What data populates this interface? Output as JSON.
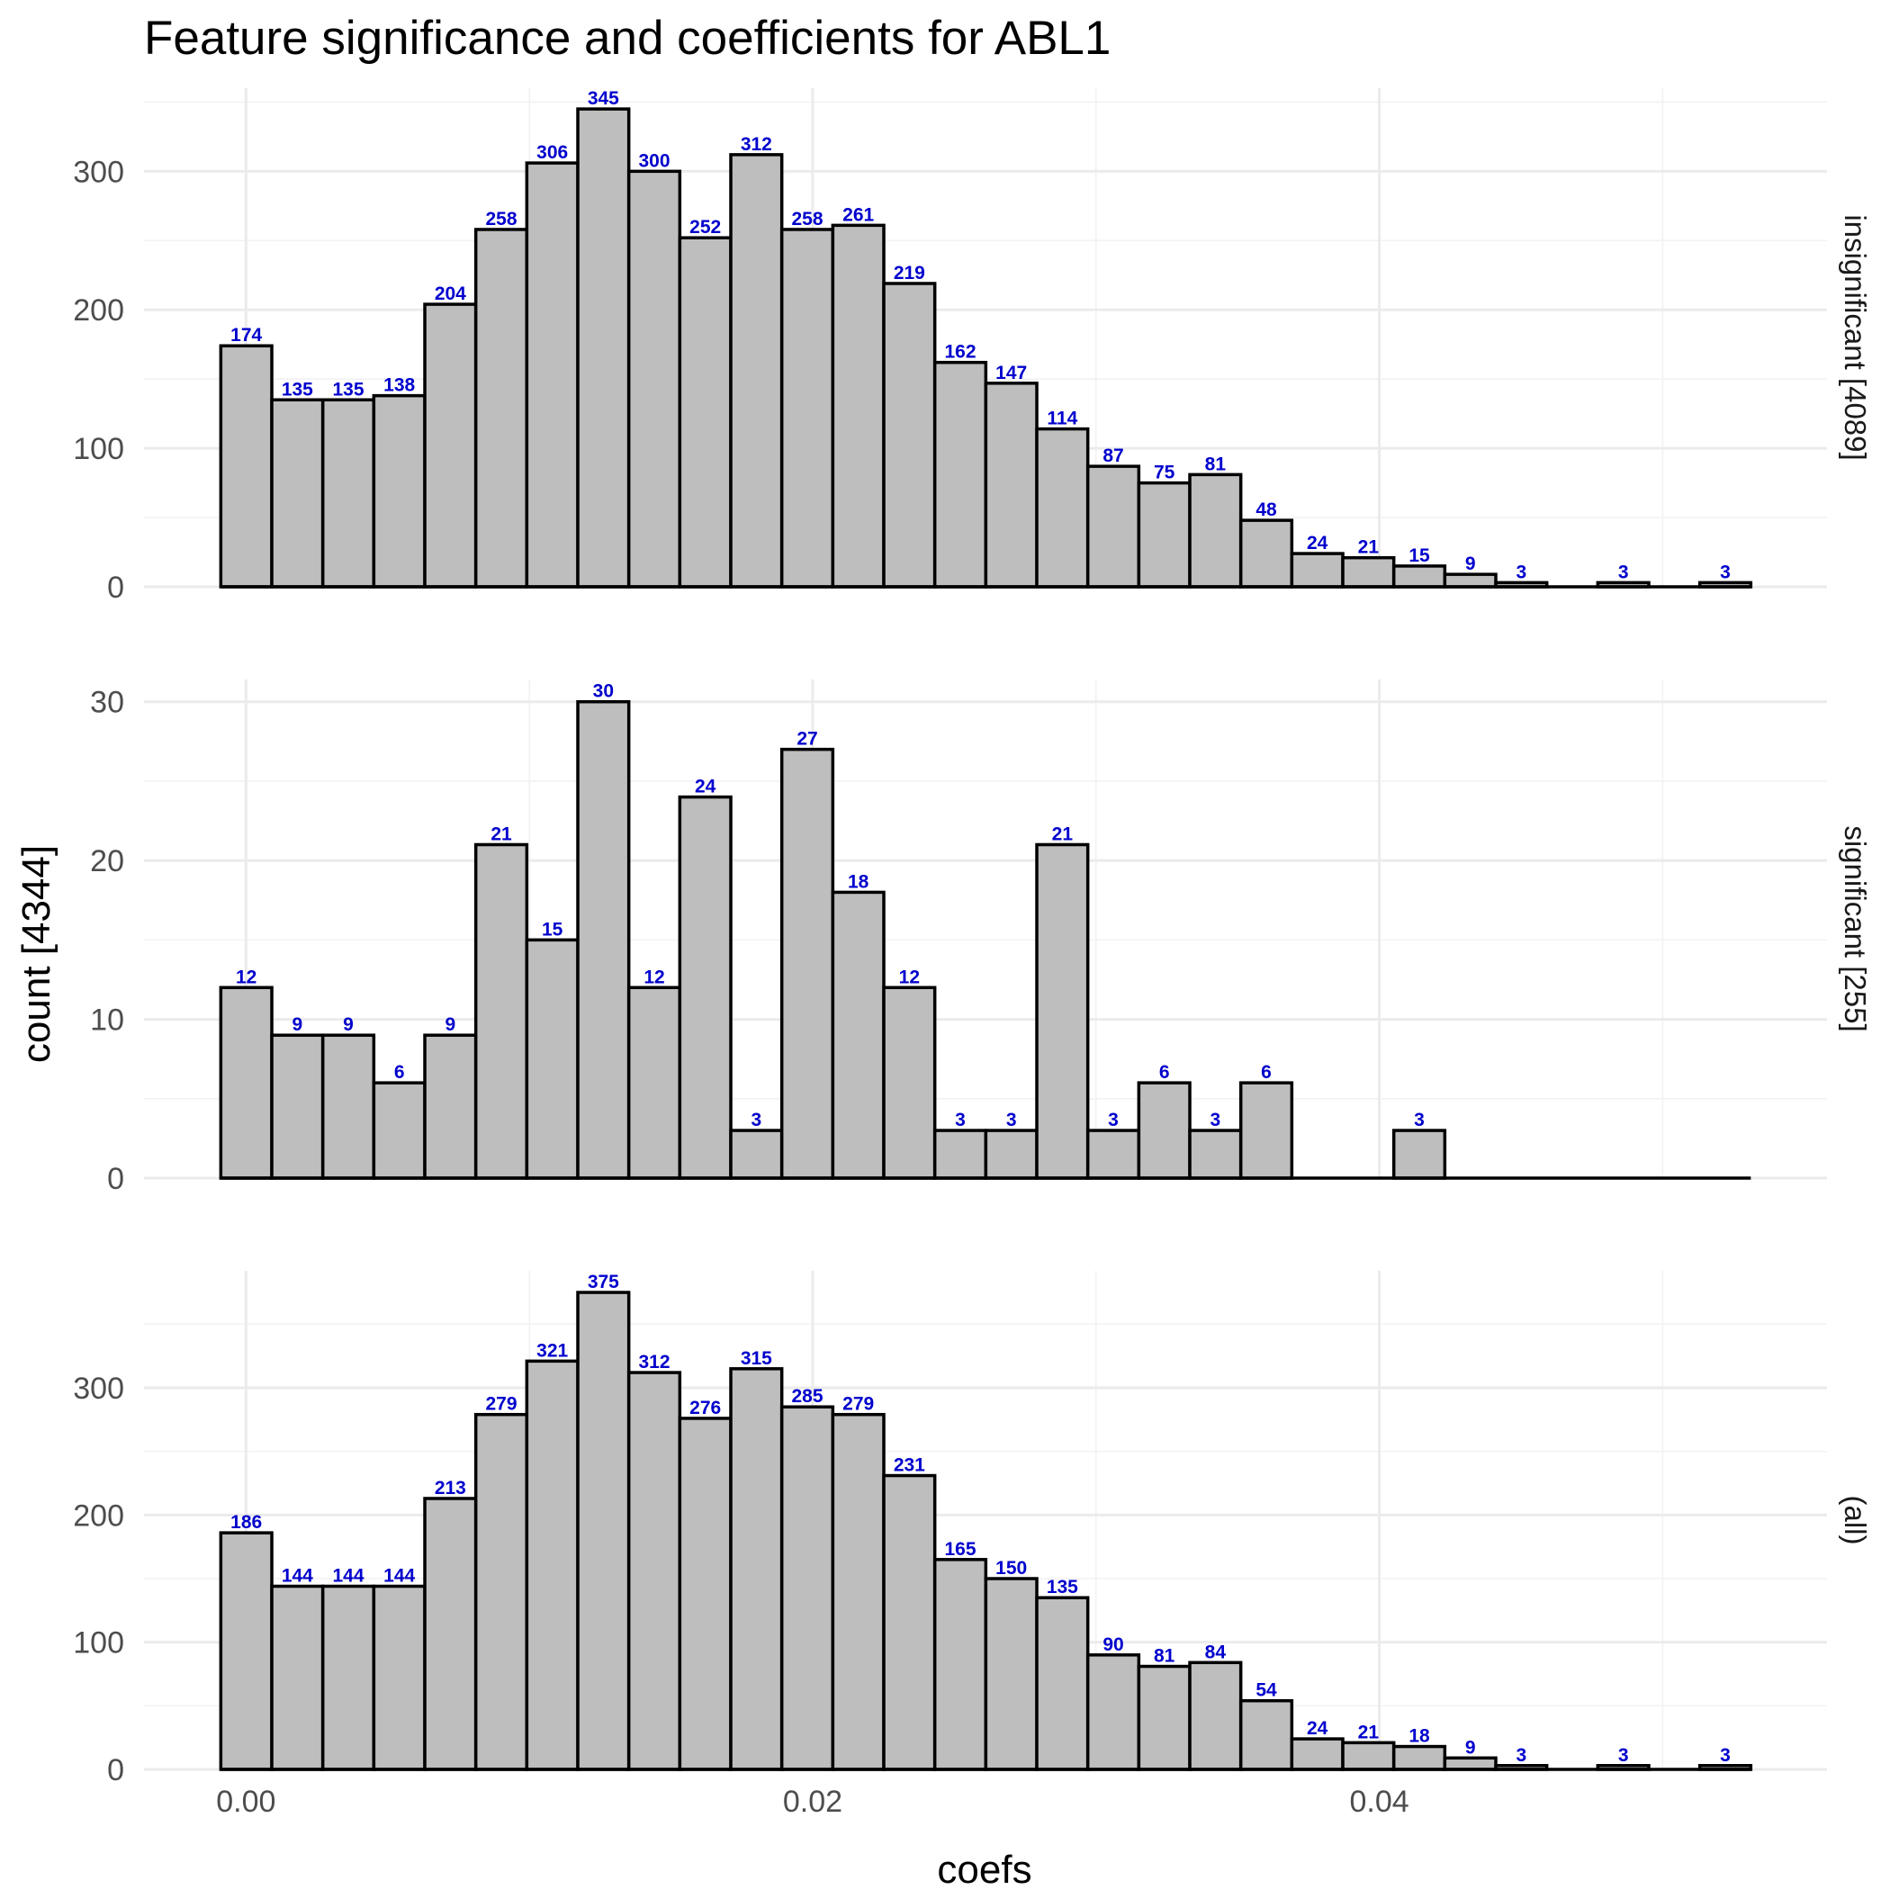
{
  "chart_data": {
    "type": "bar",
    "title": "Feature significance and coefficients for ABL1",
    "xlabel": "coefs",
    "ylabel": "count [4344]",
    "bin_start": -0.000889,
    "bin_width": 0.0018,
    "xlim": [
      -0.0036,
      0.0558
    ],
    "x_ticks": [
      0.0,
      0.02,
      0.04
    ],
    "x_tick_labels": [
      "0.00",
      "0.02",
      "0.04"
    ],
    "grid": true,
    "panels": [
      {
        "strip": "insignificant [4089]",
        "ylim": [
          0,
          360
        ],
        "y_ticks": [
          0,
          100,
          200,
          300
        ],
        "y_tick_labels": [
          "0",
          "100",
          "200",
          "300"
        ],
        "values": [
          174,
          135,
          135,
          138,
          204,
          258,
          306,
          345,
          300,
          252,
          312,
          258,
          261,
          219,
          162,
          147,
          114,
          87,
          75,
          81,
          48,
          24,
          21,
          15,
          9,
          3,
          0,
          3,
          0,
          3
        ],
        "labels": [
          "174",
          "135",
          "135",
          "138",
          "204",
          "258",
          "306",
          "345",
          "300",
          "252",
          "312",
          "258",
          "261",
          "219",
          "162",
          "147",
          "114",
          "87",
          "75",
          "81",
          "48",
          "24",
          "21",
          "15",
          "9",
          "3",
          "",
          "3",
          "",
          "3"
        ]
      },
      {
        "strip": "significant [255]",
        "ylim": [
          0,
          31.4
        ],
        "y_ticks": [
          0,
          10,
          20,
          30
        ],
        "y_tick_labels": [
          "0",
          "10",
          "20",
          "30"
        ],
        "values": [
          12,
          9,
          9,
          6,
          9,
          21,
          15,
          30,
          12,
          24,
          3,
          27,
          18,
          12,
          3,
          3,
          21,
          3,
          6,
          3,
          6,
          0,
          0,
          3,
          0,
          0,
          0,
          0,
          0,
          0
        ],
        "labels": [
          "12",
          "9",
          "9",
          "6",
          "9",
          "21",
          "15",
          "30",
          "12",
          "24",
          "3",
          "27",
          "18",
          "12",
          "3",
          "3",
          "21",
          "3",
          "6",
          "3",
          "6",
          "",
          "",
          "3",
          "",
          "",
          "",
          "",
          "",
          ""
        ]
      },
      {
        "strip": "(all)",
        "ylim": [
          0,
          392
        ],
        "y_ticks": [
          0,
          100,
          200,
          300
        ],
        "y_tick_labels": [
          "0",
          "100",
          "200",
          "300"
        ],
        "values": [
          186,
          144,
          144,
          144,
          213,
          279,
          321,
          375,
          312,
          276,
          315,
          285,
          279,
          231,
          165,
          150,
          135,
          90,
          81,
          84,
          54,
          24,
          21,
          18,
          9,
          3,
          0,
          3,
          0,
          3
        ],
        "labels": [
          "186",
          "144",
          "144",
          "144",
          "213",
          "279",
          "321",
          "375",
          "312",
          "276",
          "315",
          "285",
          "279",
          "231",
          "165",
          "150",
          "135",
          "90",
          "81",
          "84",
          "54",
          "24",
          "21",
          "18",
          "9",
          "3",
          "",
          "3",
          "",
          "3"
        ]
      }
    ]
  }
}
